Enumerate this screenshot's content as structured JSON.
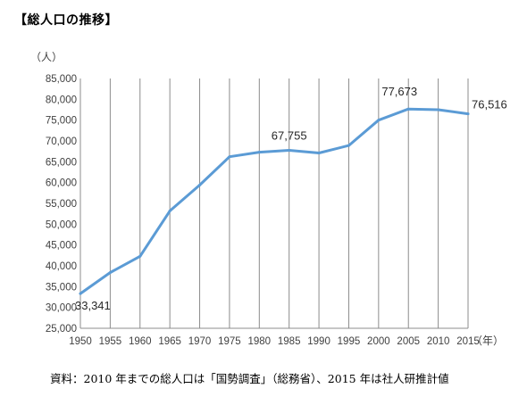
{
  "title": "【総人口の推移】",
  "source_note": "資料：2010 年までの総人口は「国勢調査」（総務省）、2015 年は社人研推計値",
  "chart_data": {
    "type": "line",
    "title": "【総人口の推移】",
    "ylabel": "（人）",
    "xlabel": "（年）",
    "categories": [
      "1950",
      "1955",
      "1960",
      "1965",
      "1970",
      "1975",
      "1980",
      "1985",
      "1990",
      "1995",
      "2000",
      "2005",
      "2010",
      "2015"
    ],
    "series": [
      {
        "values": [
          33341,
          38400,
          42300,
          53200,
          59400,
          66200,
          67300,
          67755,
          67100,
          68900,
          75000,
          77673,
          77500,
          76516
        ],
        "color": "#5b9bd5"
      }
    ],
    "data_labels": [
      {
        "index": 0,
        "text": "33,341"
      },
      {
        "index": 7,
        "text": "67,755"
      },
      {
        "index": 11,
        "text": "77,673"
      },
      {
        "index": 13,
        "text": "76,516"
      }
    ],
    "yticks": [
      "25,000",
      "30,000",
      "35,000",
      "40,000",
      "45,000",
      "50,000",
      "55,000",
      "60,000",
      "65,000",
      "70,000",
      "75,000",
      "80,000",
      "85,000"
    ],
    "ylim": [
      25000,
      85000
    ],
    "grid": "vertical"
  }
}
